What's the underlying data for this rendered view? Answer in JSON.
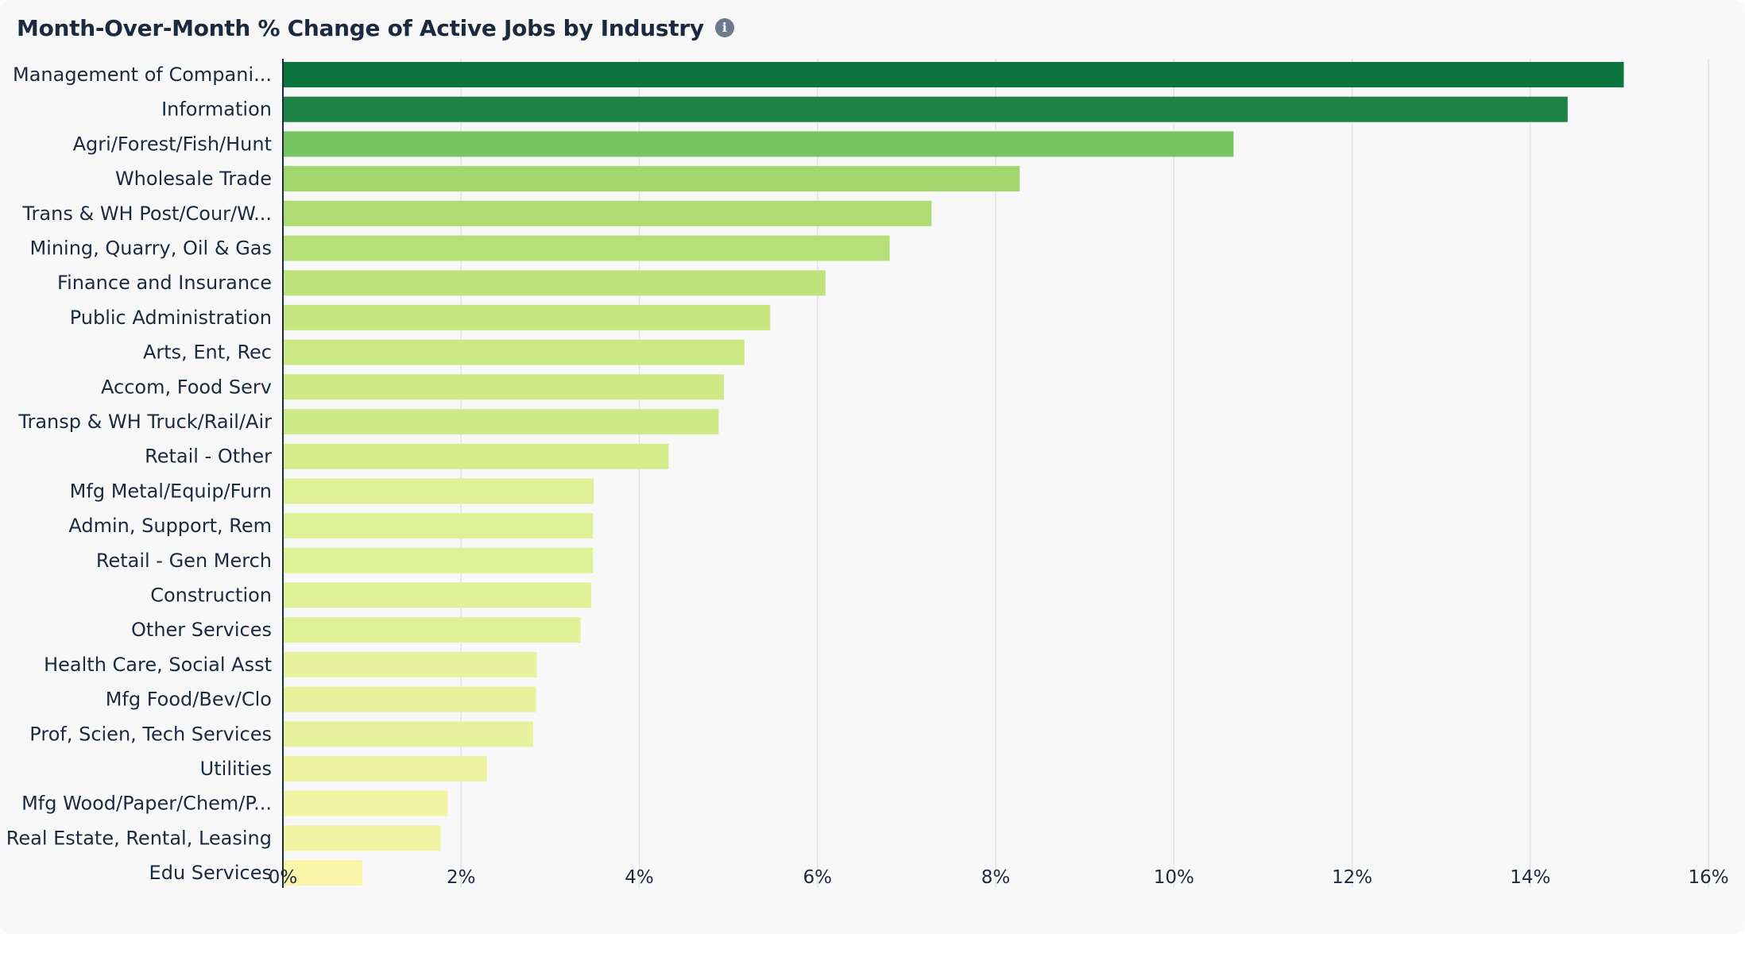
{
  "title": "Month-Over-Month % Change of Active Jobs by Industry",
  "info_icon": "info-icon",
  "chart_data": {
    "type": "bar",
    "orientation": "horizontal",
    "title": "Month-Over-Month % Change of Active Jobs by Industry",
    "xlabel": "",
    "ylabel": "",
    "xlim": [
      0,
      16
    ],
    "x_ticks": [
      0,
      2,
      4,
      6,
      8,
      10,
      12,
      14,
      16
    ],
    "x_tick_format": "percent",
    "grid": true,
    "legend": "none",
    "color_scale": [
      "#fbf5a9",
      "#e3f29a",
      "#c6e67f",
      "#a8da6f",
      "#7cc763",
      "#49ab58",
      "#0b733e"
    ],
    "categories": [
      "Management of Compani...",
      "Information",
      "Agri/Forest/Fish/Hunt",
      "Wholesale Trade",
      "Trans & WH Post/Cour/W...",
      "Mining, Quarry, Oil & Gas",
      "Finance and Insurance",
      "Public Administration",
      "Arts, Ent, Rec",
      "Accom, Food Serv",
      "Transp & WH Truck/Rail/Air",
      "Retail - Other",
      "Mfg Metal/Equip/Furn",
      "Admin, Support, Rem",
      "Retail - Gen Merch",
      "Construction",
      "Other Services",
      "Health Care, Social Asst",
      "Mfg Food/Bev/Clo",
      "Prof, Scien, Tech Services",
      "Utilities",
      "Mfg Wood/Paper/Chem/P...",
      "Real Estate, Rental, Leasing",
      "Edu Services"
    ],
    "values": [
      15.05,
      14.42,
      10.67,
      8.27,
      7.28,
      6.81,
      6.09,
      5.47,
      5.18,
      4.95,
      4.89,
      4.33,
      3.49,
      3.48,
      3.48,
      3.46,
      3.34,
      2.85,
      2.84,
      2.81,
      2.29,
      1.85,
      1.77,
      0.89
    ]
  }
}
